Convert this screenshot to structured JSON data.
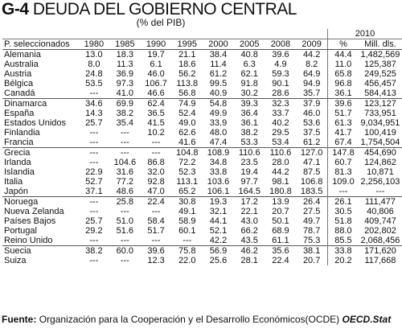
{
  "title": {
    "code": "G-4",
    "text": "DEUDA DEL GOBIERNO CENTRAL"
  },
  "subtitle": "(% del PIB)",
  "headers": {
    "country": "P. seleccionados",
    "years": [
      "1980",
      "1985",
      "1990",
      "1995",
      "2000",
      "2005",
      "2008",
      "2009"
    ],
    "year2010": "2010",
    "sub_pct": "%",
    "sub_mill": "Mill. dls."
  },
  "groups": [
    [
      {
        "country": "Alemania",
        "v": [
          "13.0",
          "18.3",
          "19.7",
          "21.1",
          "38.4",
          "40.8",
          "39.6",
          "44.2",
          "44.4",
          "1,482,569"
        ]
      },
      {
        "country": "Australia",
        "v": [
          "8.0",
          "11.3",
          "6.1",
          "18.6",
          "11.4",
          "6.3",
          "4.9",
          "8.2",
          "11.0",
          "125,387"
        ]
      },
      {
        "country": "Austria",
        "v": [
          "24.8",
          "36.9",
          "46.0",
          "56.2",
          "61.2",
          "62.1",
          "59.3",
          "64.9",
          "65.8",
          "249,525"
        ]
      },
      {
        "country": "Bélgica",
        "v": [
          "53.5",
          "97.3",
          "106.7",
          "113.8",
          "99.5",
          "91.8",
          "90.1",
          "94.9",
          "96.8",
          "456,457"
        ]
      },
      {
        "country": "Canadá",
        "v": [
          "---",
          "41.0",
          "46.6",
          "56.8",
          "40.9",
          "30.2",
          "28.6",
          "35.7",
          "36.1",
          "584,413"
        ]
      }
    ],
    [
      {
        "country": "Dinamarca",
        "v": [
          "34.6",
          "69.9",
          "62.4",
          "74.9",
          "54.8",
          "39.3",
          "32.3",
          "37.9",
          "39.6",
          "123,127"
        ]
      },
      {
        "country": "España",
        "v": [
          "14.3",
          "38.2",
          "36.5",
          "52.4",
          "49.9",
          "36.4",
          "33.7",
          "46.0",
          "51.7",
          "733,951"
        ]
      },
      {
        "country": "Estados Unidos",
        "v": [
          "25.7",
          "35.4",
          "41.5",
          "49.0",
          "33.9",
          "36.1",
          "40.2",
          "53.6",
          "61.3",
          "9,034,951"
        ]
      },
      {
        "country": "Finlandia",
        "v": [
          "---",
          "---",
          "10.2",
          "62.6",
          "48.0",
          "38.2",
          "29.5",
          "37.5",
          "41.7",
          "100,419"
        ]
      },
      {
        "country": "Francia",
        "v": [
          "---",
          "---",
          "---",
          "41.6",
          "47.4",
          "53.3",
          "53.4",
          "61.2",
          "67.4",
          "1,754,504"
        ]
      }
    ],
    [
      {
        "country": "Grecia",
        "v": [
          "---",
          "---",
          "---",
          "104.8",
          "108.9",
          "110.6",
          "110.6",
          "127.0",
          "147.8",
          "454,690"
        ]
      },
      {
        "country": "Irlanda",
        "v": [
          "---",
          "104.6",
          "86.8",
          "72.2",
          "34.8",
          "23.5",
          "28.0",
          "47.1",
          "60.7",
          "124,862"
        ]
      },
      {
        "country": "Islandia",
        "v": [
          "22.9",
          "31.6",
          "32.0",
          "52.3",
          "33.8",
          "19.4",
          "44.2",
          "87.5",
          "81.3",
          "10,871"
        ]
      },
      {
        "country": "Italia",
        "v": [
          "52.7",
          "77.2",
          "92.8",
          "113.1",
          "103.6",
          "97.7",
          "98.1",
          "106.8",
          "109.0",
          "2,256,103"
        ]
      },
      {
        "country": "Japón",
        "v": [
          "37.1",
          "48.6",
          "47.0",
          "65.2",
          "106.1",
          "164.5",
          "180.8",
          "183.5",
          "---",
          "---"
        ]
      }
    ],
    [
      {
        "country": "Noruega",
        "v": [
          "---",
          "25.8",
          "22.4",
          "30.8",
          "19.3",
          "17.2",
          "13.9",
          "26.4",
          "26.1",
          "111,477"
        ]
      },
      {
        "country": "Nueva Zelanda",
        "v": [
          "---",
          "---",
          "---",
          "49.1",
          "32.1",
          "22.1",
          "20.7",
          "27.5",
          "30.5",
          "40,806"
        ]
      },
      {
        "country": "Países Bajos",
        "v": [
          "25.7",
          "51.0",
          "58.4",
          "58.9",
          "44.1",
          "43.0",
          "50.1",
          "49.7",
          "51.8",
          "409,747"
        ]
      },
      {
        "country": "Portugal",
        "v": [
          "29.2",
          "51.6",
          "51.7",
          "60.1",
          "52.1",
          "66.2",
          "68.9",
          "78.7",
          "88.0",
          "202,802"
        ]
      },
      {
        "country": "Reino Unido",
        "v": [
          "---",
          "---",
          "---",
          "---",
          "42.2",
          "43.5",
          "61.1",
          "75.3",
          "85.5",
          "2,068,456"
        ]
      }
    ],
    [
      {
        "country": "Suecia",
        "v": [
          "38.2",
          "60.0",
          "39.6",
          "75.8",
          "56.9",
          "46.2",
          "35.6",
          "38.1",
          "33.8",
          "171,620"
        ]
      },
      {
        "country": "Suiza",
        "v": [
          "---",
          "---",
          "12.3",
          "22.0",
          "25.6",
          "28.1",
          "22.4",
          "20.7",
          "20.2",
          "117,668"
        ]
      }
    ]
  ],
  "source": {
    "label": "Fuente:",
    "text": "Organización para la Cooperación y el Desarrollo Económicos(OCDE)",
    "stat": "OECD.Stat"
  }
}
